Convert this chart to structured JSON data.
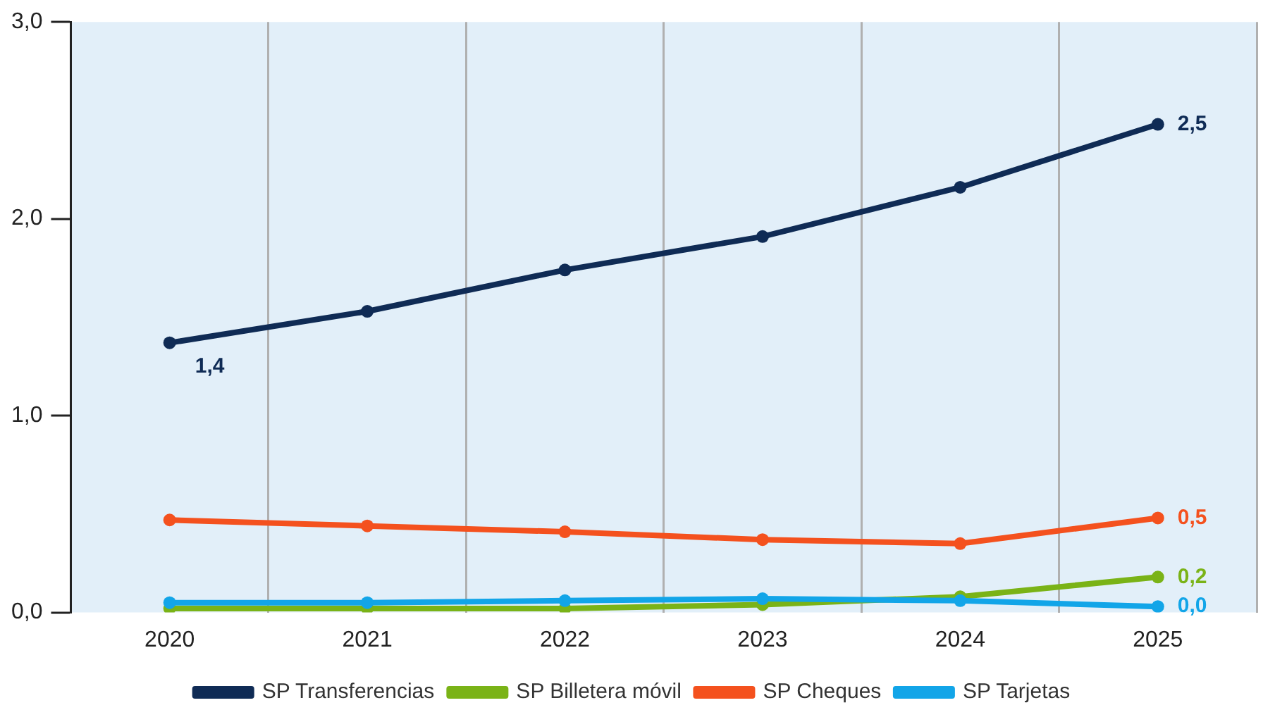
{
  "chart_data": {
    "type": "line",
    "categories": [
      "2020",
      "2021",
      "2022",
      "2023",
      "2024",
      "2025"
    ],
    "series": [
      {
        "name": "SP Transferencias",
        "color": "#0f2b55",
        "values": [
          1.37,
          1.53,
          1.74,
          1.91,
          2.16,
          2.48
        ],
        "value_labels": [
          "1,4",
          null,
          null,
          null,
          null,
          "2,5"
        ]
      },
      {
        "name": "SP Billetera móvil",
        "color": "#7ab317",
        "values": [
          0.02,
          0.02,
          0.02,
          0.04,
          0.08,
          0.18
        ],
        "value_labels": [
          null,
          null,
          null,
          null,
          null,
          "0,2"
        ]
      },
      {
        "name": "SP Cheques",
        "color": "#f4511e",
        "values": [
          0.47,
          0.44,
          0.41,
          0.37,
          0.35,
          0.48
        ],
        "value_labels": [
          null,
          null,
          null,
          null,
          null,
          "0,5"
        ]
      },
      {
        "name": "SP Tarjetas",
        "color": "#12a5e8",
        "values": [
          0.05,
          0.05,
          0.06,
          0.07,
          0.06,
          0.03
        ],
        "value_labels": [
          null,
          null,
          null,
          null,
          null,
          "0,0"
        ]
      }
    ],
    "ylim": [
      0,
      3
    ],
    "yticks": [
      {
        "value": 0,
        "label": "0,0"
      },
      {
        "value": 1,
        "label": "1,0"
      },
      {
        "value": 2,
        "label": "2,0"
      },
      {
        "value": 3,
        "label": "3,0"
      }
    ],
    "grid": "x",
    "legend": "bottom",
    "marker": "circle",
    "line_style": "solid"
  }
}
